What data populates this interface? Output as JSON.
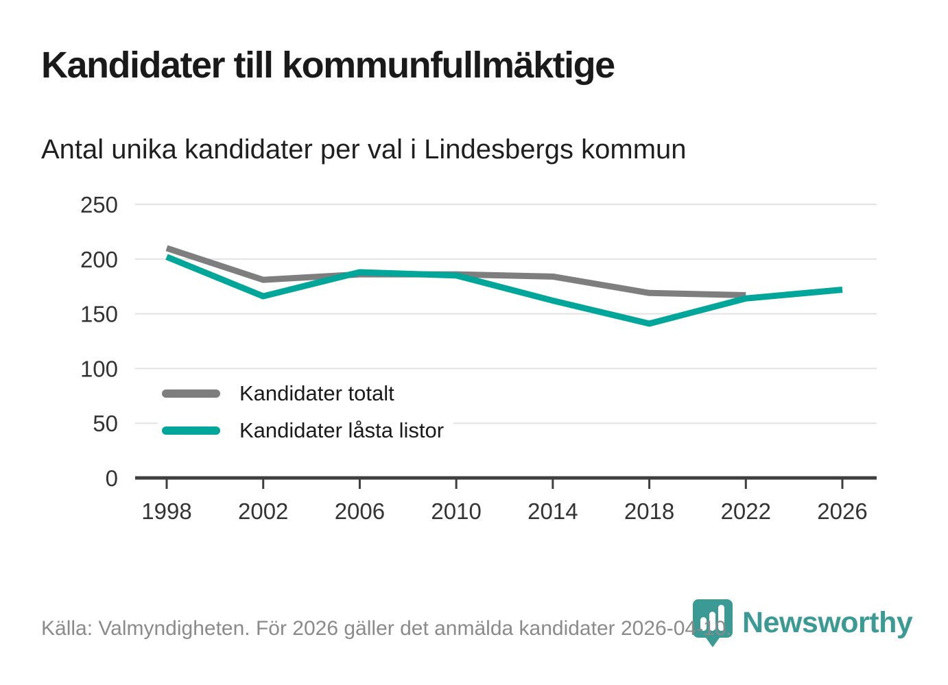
{
  "header": {
    "title": "Kandidater till kommunfullmäktige",
    "subtitle": "Antal unika kandidater per val i Lindesbergs kommun"
  },
  "chart_data": {
    "type": "line",
    "title": "Kandidater till kommunfullmäktige",
    "subtitle": "Antal unika kandidater per val i Lindesbergs kommun",
    "x_ticks": [
      1998,
      2002,
      2006,
      2010,
      2014,
      2018,
      2022,
      2026
    ],
    "y_ticks": [
      0,
      50,
      100,
      150,
      200,
      250
    ],
    "ylim": [
      0,
      250
    ],
    "grid": "horizontal",
    "legend_position": "inside-bottom-left",
    "series": [
      {
        "name": "Kandidater totalt",
        "color": "#7e7e7e",
        "x": [
          1998,
          2002,
          2006,
          2010,
          2014,
          2018,
          2022
        ],
        "values": [
          210,
          181,
          186,
          186,
          184,
          169,
          167
        ]
      },
      {
        "name": "Kandidater låsta listor",
        "color": "#00a69a",
        "x": [
          1998,
          2002,
          2006,
          2010,
          2014,
          2018,
          2022,
          2026
        ],
        "values": [
          202,
          166,
          188,
          185,
          162,
          141,
          164,
          172
        ]
      }
    ]
  },
  "footer": {
    "source": "Källa: Valmyndigheten. För 2026 gäller det anmälda kandidater 2026-04-10."
  },
  "branding": {
    "logo_text": "Newsworthy",
    "logo_color": "#3b9b94",
    "logo_icon": "bar-chart-pin-icon"
  }
}
